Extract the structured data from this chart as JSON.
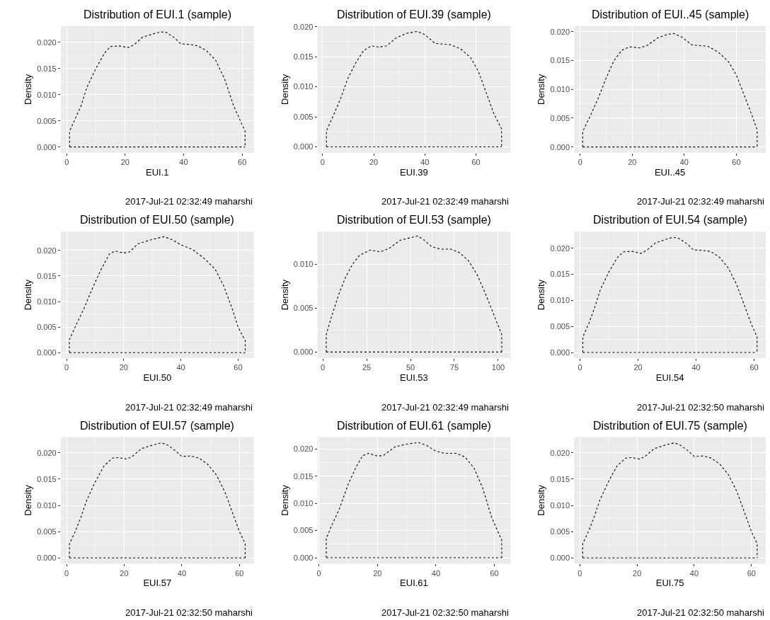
{
  "chart_data": [
    {
      "type": "line",
      "title": "Distribution of EUI.1 (sample)",
      "xlabel": "EUI.1",
      "ylabel": "Density",
      "color": "#000000",
      "line_style": "dotted",
      "grid": true,
      "xlim": [
        -2,
        64
      ],
      "ylim": [
        -0.0011,
        0.0231
      ],
      "xticks": [
        0,
        20,
        40,
        60
      ],
      "yticks": [
        {
          "value": 0,
          "label": "0.000"
        },
        {
          "value": 0.005,
          "label": "0.005"
        },
        {
          "value": 0.01,
          "label": "0.010"
        },
        {
          "value": 0.015,
          "label": "0.015"
        },
        {
          "value": 0.02,
          "label": "0.020"
        }
      ],
      "annotations": [
        "2017-Jul-21 02:32:49 maharshi"
      ],
      "ref_lines": [
        {
          "axis": "y",
          "value": 0,
          "color": "#000000",
          "line_style": "dotted"
        }
      ],
      "x": [
        1,
        1,
        3,
        5,
        7,
        10,
        13,
        15,
        18,
        21,
        23,
        26,
        29,
        32,
        34,
        37,
        39,
        42,
        45,
        48,
        51,
        54,
        57,
        59,
        61,
        61
      ],
      "values": [
        0,
        0.003,
        0.0055,
        0.008,
        0.0115,
        0.015,
        0.018,
        0.0192,
        0.0193,
        0.019,
        0.0195,
        0.021,
        0.0215,
        0.022,
        0.0219,
        0.0208,
        0.0197,
        0.0196,
        0.0193,
        0.0183,
        0.0165,
        0.013,
        0.008,
        0.0055,
        0.003,
        0
      ]
    },
    {
      "type": "line",
      "title": "Distribution of EUI.39 (sample)",
      "xlabel": "EUI.39",
      "ylabel": "Density",
      "color": "#000000",
      "line_style": "dotted",
      "grid": true,
      "xlim": [
        -2,
        73.5
      ],
      "ylim": [
        -0.00097,
        0.0201
      ],
      "xticks": [
        0,
        20,
        40,
        60
      ],
      "yticks": [
        {
          "value": 0,
          "label": "0.000"
        },
        {
          "value": 0.005,
          "label": "0.005"
        },
        {
          "value": 0.01,
          "label": "0.010"
        },
        {
          "value": 0.015,
          "label": "0.015"
        },
        {
          "value": 0.02,
          "label": "0.020"
        }
      ],
      "annotations": [
        "2017-Jul-21 02:32:49 maharshi"
      ],
      "ref_lines": [
        {
          "axis": "y",
          "value": 0,
          "color": "#000000",
          "line_style": "dotted"
        }
      ],
      "x": [
        1.5,
        1.5,
        4,
        7,
        10,
        13,
        16,
        19,
        22,
        25,
        29,
        33,
        37,
        40,
        44,
        47,
        50,
        54,
        58,
        61,
        64,
        67,
        70,
        70
      ],
      "values": [
        0,
        0.0027,
        0.005,
        0.008,
        0.0115,
        0.014,
        0.016,
        0.0168,
        0.0166,
        0.0168,
        0.0182,
        0.0189,
        0.0192,
        0.0187,
        0.0172,
        0.0171,
        0.017,
        0.0163,
        0.0148,
        0.0125,
        0.009,
        0.0055,
        0.003,
        0
      ]
    },
    {
      "type": "line",
      "title": "Distribution of EUI..45 (sample)",
      "xlabel": "EUI..45",
      "ylabel": "Density",
      "color": "#000000",
      "line_style": "dotted",
      "grid": true,
      "xlim": [
        -2.3,
        71.3
      ],
      "ylim": [
        -0.001,
        0.021
      ],
      "xticks": [
        0,
        20,
        40,
        60
      ],
      "yticks": [
        {
          "value": 0,
          "label": "0.000"
        },
        {
          "value": 0.005,
          "label": "0.005"
        },
        {
          "value": 0.01,
          "label": "0.010"
        },
        {
          "value": 0.015,
          "label": "0.015"
        },
        {
          "value": 0.02,
          "label": "0.020"
        }
      ],
      "annotations": [
        "2017-Jul-21 02:32:49 maharshi"
      ],
      "ref_lines": [
        {
          "axis": "y",
          "value": 0,
          "color": "#000000",
          "line_style": "dotted"
        }
      ],
      "x": [
        1,
        1,
        4,
        7,
        10,
        13,
        16,
        19,
        23,
        26,
        30,
        34,
        36,
        39,
        43,
        46,
        49,
        53,
        57,
        60,
        63,
        66,
        68,
        68
      ],
      "values": [
        0,
        0.0027,
        0.0055,
        0.0085,
        0.012,
        0.015,
        0.0168,
        0.0174,
        0.0172,
        0.0177,
        0.019,
        0.0196,
        0.0197,
        0.0191,
        0.0177,
        0.0176,
        0.0175,
        0.0165,
        0.0148,
        0.0125,
        0.009,
        0.0055,
        0.003,
        0
      ]
    },
    {
      "type": "line",
      "title": "Distribution of EUI.50 (sample)",
      "xlabel": "EUI.50",
      "ylabel": "Density",
      "color": "#000000",
      "line_style": "dotted",
      "grid": true,
      "xlim": [
        -2,
        65.5
      ],
      "ylim": [
        -0.0011,
        0.0237
      ],
      "xticks": [
        0,
        20,
        40,
        60
      ],
      "yticks": [
        {
          "value": 0,
          "label": "0.000"
        },
        {
          "value": 0.005,
          "label": "0.005"
        },
        {
          "value": 0.01,
          "label": "0.010"
        },
        {
          "value": 0.015,
          "label": "0.015"
        },
        {
          "value": 0.02,
          "label": "0.020"
        }
      ],
      "annotations": [
        "2017-Jul-21 02:32:49 maharshi"
      ],
      "ref_lines": [
        {
          "axis": "y",
          "value": 0,
          "color": "#000000",
          "line_style": "dotted"
        }
      ],
      "x": [
        1,
        1,
        3,
        6,
        9,
        12,
        15,
        17,
        20,
        22,
        25,
        29,
        34,
        37,
        40,
        44,
        48,
        52,
        55,
        58,
        60,
        62.5,
        62.5
      ],
      "values": [
        0,
        0.0025,
        0.005,
        0.0085,
        0.0125,
        0.0162,
        0.0193,
        0.0199,
        0.0195,
        0.0197,
        0.0213,
        0.022,
        0.0227,
        0.0221,
        0.0211,
        0.0202,
        0.0185,
        0.0163,
        0.013,
        0.0085,
        0.005,
        0.0023,
        0
      ]
    },
    {
      "type": "line",
      "title": "Distribution of EUI.53 (sample)",
      "xlabel": "EUI.53",
      "ylabel": "Density",
      "color": "#000000",
      "line_style": "dotted",
      "grid": true,
      "xlim": [
        -3,
        107
      ],
      "ylim": [
        -0.0007,
        0.0137
      ],
      "xticks": [
        0,
        25,
        50,
        75,
        100
      ],
      "yticks": [
        {
          "value": 0,
          "label": "0.000"
        },
        {
          "value": 0.005,
          "label": "0.005"
        },
        {
          "value": 0.01,
          "label": "0.010"
        }
      ],
      "annotations": [
        "2017-Jul-21 02:32:49 maharshi"
      ],
      "ref_lines": [
        {
          "axis": "y",
          "value": 0,
          "color": "#000000",
          "line_style": "dotted"
        }
      ],
      "x": [
        2,
        2,
        5,
        9,
        13,
        17,
        21,
        27,
        33,
        38,
        44,
        50,
        54,
        58,
        62,
        67,
        73,
        78,
        83,
        88,
        93,
        98,
        102,
        102
      ],
      "values": [
        0,
        0.002,
        0.004,
        0.0065,
        0.0085,
        0.01,
        0.011,
        0.0116,
        0.0114,
        0.0118,
        0.0127,
        0.013,
        0.0132,
        0.0127,
        0.012,
        0.0117,
        0.0117,
        0.0113,
        0.0104,
        0.0088,
        0.0065,
        0.004,
        0.002,
        0
      ]
    },
    {
      "type": "line",
      "title": "Distribution of EUI.54 (sample)",
      "xlabel": "EUI.54",
      "ylabel": "Density",
      "color": "#000000",
      "line_style": "dotted",
      "grid": true,
      "xlim": [
        -2,
        64
      ],
      "ylim": [
        -0.0011,
        0.0232
      ],
      "xticks": [
        0,
        20,
        40,
        60
      ],
      "yticks": [
        {
          "value": 0,
          "label": "0.000"
        },
        {
          "value": 0.005,
          "label": "0.005"
        },
        {
          "value": 0.01,
          "label": "0.010"
        },
        {
          "value": 0.015,
          "label": "0.015"
        },
        {
          "value": 0.02,
          "label": "0.020"
        }
      ],
      "annotations": [
        "2017-Jul-21 02:32:50 maharshi"
      ],
      "ref_lines": [
        {
          "axis": "y",
          "value": 0,
          "color": "#000000",
          "line_style": "dotted"
        }
      ],
      "x": [
        1,
        1,
        3,
        5,
        7,
        10,
        13,
        15,
        18,
        21,
        23,
        26,
        29,
        32,
        34,
        37,
        39,
        42,
        45,
        48,
        51,
        54,
        57,
        59,
        61,
        61
      ],
      "values": [
        0,
        0.003,
        0.0055,
        0.0085,
        0.012,
        0.0155,
        0.0183,
        0.0193,
        0.0194,
        0.019,
        0.0196,
        0.021,
        0.0216,
        0.0221,
        0.0219,
        0.0208,
        0.0197,
        0.0196,
        0.0194,
        0.0183,
        0.0163,
        0.013,
        0.0085,
        0.0055,
        0.003,
        0
      ]
    },
    {
      "type": "line",
      "title": "Distribution of EUI.57 (sample)",
      "xlabel": "EUI.57",
      "ylabel": "Density",
      "color": "#000000",
      "line_style": "dotted",
      "grid": true,
      "xlim": [
        -2,
        65
      ],
      "ylim": [
        -0.0011,
        0.023
      ],
      "xticks": [
        0,
        20,
        40,
        60
      ],
      "yticks": [
        {
          "value": 0,
          "label": "0.000"
        },
        {
          "value": 0.005,
          "label": "0.005"
        },
        {
          "value": 0.01,
          "label": "0.010"
        },
        {
          "value": 0.015,
          "label": "0.015"
        },
        {
          "value": 0.02,
          "label": "0.020"
        }
      ],
      "annotations": [
        "2017-Jul-21 02:32:50 maharshi"
      ],
      "ref_lines": [
        {
          "axis": "y",
          "value": 0,
          "color": "#000000",
          "line_style": "dotted"
        }
      ],
      "x": [
        1,
        1,
        3,
        5,
        7,
        10,
        13,
        16,
        18,
        21,
        23,
        26,
        30,
        33,
        35,
        38,
        40,
        43,
        46,
        49,
        52,
        55,
        58,
        60,
        62,
        62
      ],
      "values": [
        0,
        0.0027,
        0.005,
        0.0078,
        0.011,
        0.0145,
        0.0175,
        0.019,
        0.0191,
        0.0188,
        0.0194,
        0.0208,
        0.0215,
        0.0219,
        0.0215,
        0.0203,
        0.0193,
        0.0194,
        0.019,
        0.0178,
        0.0158,
        0.0125,
        0.008,
        0.005,
        0.0027,
        0
      ]
    },
    {
      "type": "line",
      "title": "Distribution of EUI.61 (sample)",
      "xlabel": "EUI.61",
      "ylabel": "Density",
      "color": "#000000",
      "line_style": "dotted",
      "grid": true,
      "xlim": [
        -0.5,
        65.5
      ],
      "ylim": [
        -0.0011,
        0.0222
      ],
      "xticks": [
        0,
        20,
        40,
        60
      ],
      "yticks": [
        {
          "value": 0,
          "label": "0.000"
        },
        {
          "value": 0.005,
          "label": "0.005"
        },
        {
          "value": 0.01,
          "label": "0.010"
        },
        {
          "value": 0.015,
          "label": "0.015"
        },
        {
          "value": 0.02,
          "label": "0.020"
        }
      ],
      "annotations": [
        "2017-Jul-21 02:32:50 maharshi"
      ],
      "ref_lines": [
        {
          "axis": "y",
          "value": 0,
          "color": "#000000",
          "line_style": "dotted"
        }
      ],
      "x": [
        2.5,
        2.5,
        4,
        7,
        10,
        13,
        15,
        17,
        20,
        22,
        26,
        30,
        34,
        37,
        40,
        43,
        47,
        50,
        53,
        56,
        59,
        61,
        62.5,
        62.5
      ],
      "values": [
        0,
        0.0035,
        0.0055,
        0.009,
        0.0135,
        0.017,
        0.0188,
        0.0192,
        0.0187,
        0.0188,
        0.0204,
        0.0209,
        0.0212,
        0.0206,
        0.0196,
        0.0192,
        0.0192,
        0.0185,
        0.0165,
        0.0128,
        0.0075,
        0.005,
        0.0033,
        0
      ]
    },
    {
      "type": "line",
      "title": "Distribution of EUI.75 (sample)",
      "xlabel": "EUI.75",
      "ylabel": "Density",
      "color": "#000000",
      "line_style": "dotted",
      "grid": true,
      "xlim": [
        -2,
        65
      ],
      "ylim": [
        -0.0011,
        0.023
      ],
      "xticks": [
        0,
        20,
        40,
        60
      ],
      "yticks": [
        {
          "value": 0,
          "label": "0.000"
        },
        {
          "value": 0.005,
          "label": "0.005"
        },
        {
          "value": 0.01,
          "label": "0.010"
        },
        {
          "value": 0.015,
          "label": "0.015"
        },
        {
          "value": 0.02,
          "label": "0.020"
        }
      ],
      "annotations": [
        "2017-Jul-21 02:32:50 maharshi"
      ],
      "ref_lines": [
        {
          "axis": "y",
          "value": 0,
          "color": "#000000",
          "line_style": "dotted"
        }
      ],
      "x": [
        1,
        1,
        3,
        5,
        7,
        10,
        13,
        16,
        18,
        21,
        23,
        26,
        30,
        33,
        35,
        38,
        40,
        43,
        46,
        49,
        52,
        55,
        58,
        60,
        62,
        62
      ],
      "values": [
        0,
        0.0027,
        0.005,
        0.0078,
        0.011,
        0.0145,
        0.0175,
        0.019,
        0.0191,
        0.0188,
        0.0194,
        0.0208,
        0.0215,
        0.0219,
        0.0215,
        0.0203,
        0.0193,
        0.0194,
        0.019,
        0.0178,
        0.0158,
        0.0125,
        0.008,
        0.005,
        0.0027,
        0
      ]
    }
  ]
}
